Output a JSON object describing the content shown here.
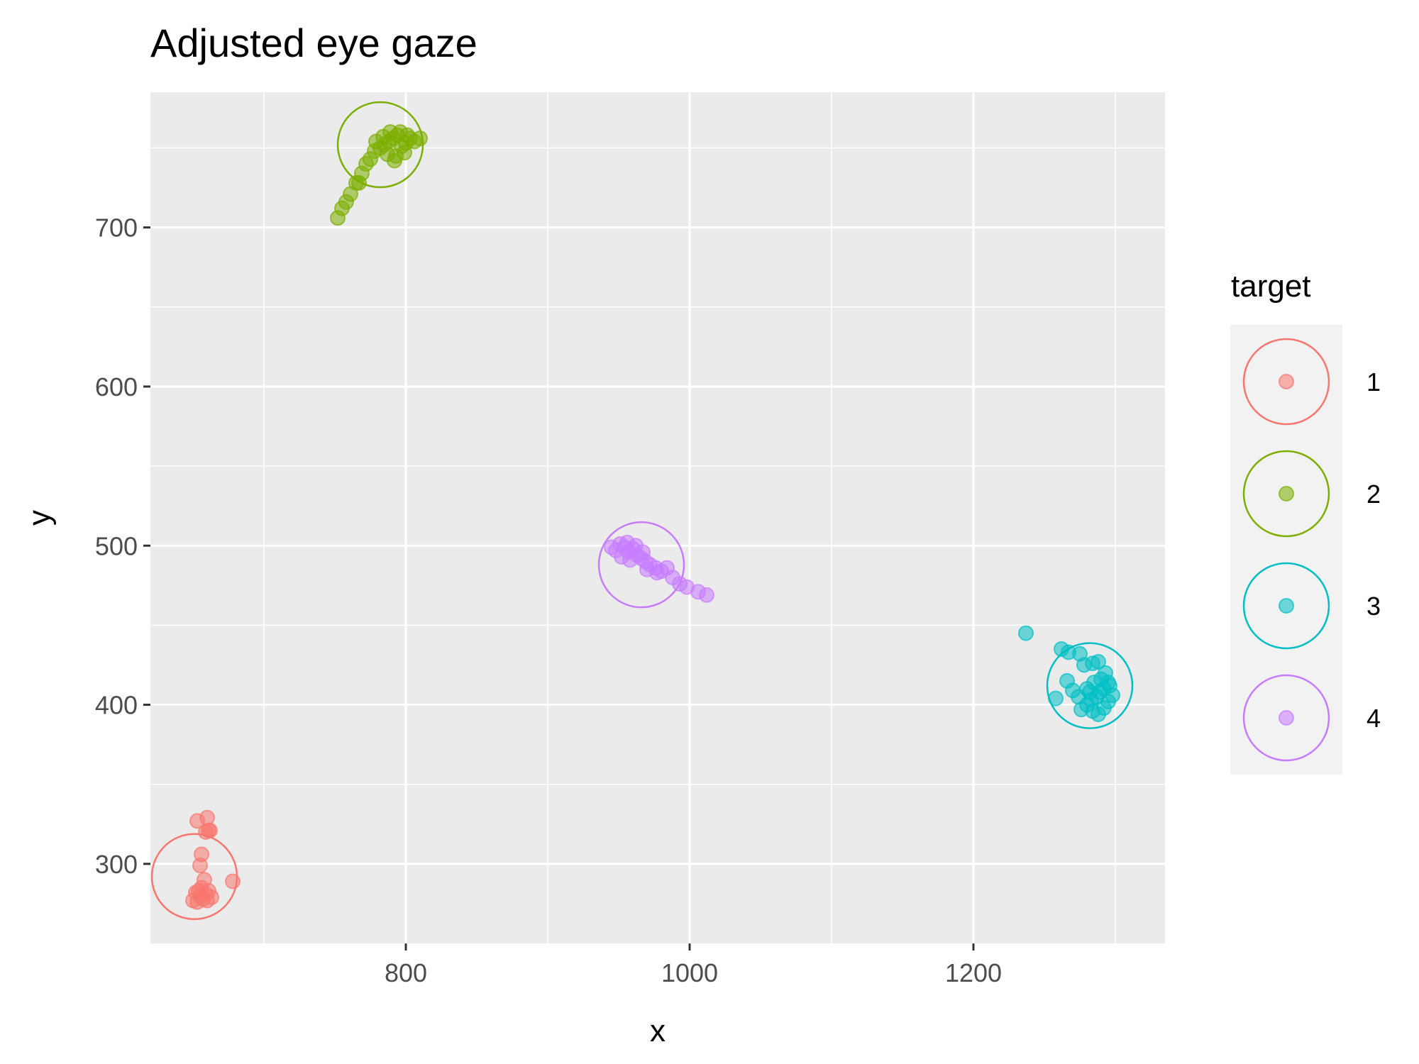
{
  "chart_data": {
    "type": "scatter",
    "title": "Adjusted eye gaze",
    "xlabel": "x",
    "ylabel": "y",
    "xlim": [
      620,
      1335
    ],
    "ylim": [
      250,
      785
    ],
    "x_ticks": [
      800,
      1000,
      1200
    ],
    "x_tick_labels": [
      "800",
      "1000",
      "1200"
    ],
    "y_ticks": [
      300,
      400,
      500,
      600,
      700
    ],
    "y_tick_labels": [
      "300",
      "400",
      "500",
      "600",
      "700"
    ],
    "x_minor_ticks": [
      700,
      900,
      1100,
      1300
    ],
    "y_minor_ticks": [
      350,
      450,
      550,
      650,
      750
    ],
    "grid": true,
    "legend": {
      "title": "target",
      "position": "right"
    },
    "series": [
      {
        "name": "1",
        "color": "#F8766D",
        "target": {
          "x": 651,
          "y": 292
        },
        "points": [
          [
            653,
            327
          ],
          [
            660,
            329
          ],
          [
            661,
            321
          ],
          [
            659,
            320
          ],
          [
            662,
            321
          ],
          [
            656,
            306
          ],
          [
            655,
            299
          ],
          [
            658,
            290
          ],
          [
            678,
            289
          ],
          [
            652,
            282
          ],
          [
            655,
            280
          ],
          [
            650,
            277
          ],
          [
            653,
            276
          ],
          [
            657,
            278
          ],
          [
            659,
            281
          ],
          [
            661,
            283
          ],
          [
            663,
            279
          ],
          [
            654,
            283
          ],
          [
            656,
            285
          ],
          [
            660,
            277
          ]
        ]
      },
      {
        "name": "2",
        "color": "#7CAE00",
        "target": {
          "x": 782,
          "y": 752
        },
        "points": [
          [
            752,
            706
          ],
          [
            755,
            712
          ],
          [
            758,
            716
          ],
          [
            761,
            721
          ],
          [
            765,
            728
          ],
          [
            769,
            734
          ],
          [
            772,
            740
          ],
          [
            767,
            728
          ],
          [
            775,
            743
          ],
          [
            778,
            748
          ],
          [
            782,
            750
          ],
          [
            785,
            752
          ],
          [
            788,
            754
          ],
          [
            791,
            756
          ],
          [
            794,
            758
          ],
          [
            797,
            751
          ],
          [
            800,
            753
          ],
          [
            803,
            756
          ],
          [
            806,
            754
          ],
          [
            810,
            756
          ],
          [
            787,
            746
          ],
          [
            793,
            745
          ],
          [
            799,
            747
          ],
          [
            779,
            754
          ],
          [
            784,
            757
          ],
          [
            789,
            760
          ],
          [
            796,
            760
          ],
          [
            801,
            758
          ],
          [
            792,
            742
          ]
        ]
      },
      {
        "name": "3",
        "color": "#00BFC4",
        "target": {
          "x": 1282,
          "y": 412
        },
        "points": [
          [
            1237,
            445
          ],
          [
            1262,
            435
          ],
          [
            1267,
            433
          ],
          [
            1275,
            432
          ],
          [
            1284,
            426
          ],
          [
            1288,
            427
          ],
          [
            1278,
            425
          ],
          [
            1266,
            415
          ],
          [
            1270,
            409
          ],
          [
            1258,
            404
          ],
          [
            1274,
            405
          ],
          [
            1280,
            400
          ],
          [
            1284,
            396
          ],
          [
            1288,
            394
          ],
          [
            1292,
            398
          ],
          [
            1295,
            402
          ],
          [
            1298,
            406
          ],
          [
            1280,
            410
          ],
          [
            1285,
            414
          ],
          [
            1290,
            416
          ],
          [
            1293,
            420
          ],
          [
            1296,
            412
          ],
          [
            1282,
            408
          ],
          [
            1287,
            405
          ],
          [
            1292,
            410
          ],
          [
            1276,
            397
          ],
          [
            1283,
            403
          ],
          [
            1289,
            408
          ],
          [
            1295,
            414
          ]
        ]
      },
      {
        "name": "4",
        "color": "#C77CFF",
        "target": {
          "x": 966,
          "y": 488
        },
        "points": [
          [
            945,
            499
          ],
          [
            948,
            497
          ],
          [
            951,
            501
          ],
          [
            954,
            499
          ],
          [
            957,
            496
          ],
          [
            960,
            498
          ],
          [
            963,
            494
          ],
          [
            966,
            492
          ],
          [
            969,
            490
          ],
          [
            952,
            493
          ],
          [
            956,
            502
          ],
          [
            962,
            500
          ],
          [
            967,
            496
          ],
          [
            972,
            488
          ],
          [
            976,
            486
          ],
          [
            980,
            484
          ],
          [
            984,
            486
          ],
          [
            988,
            480
          ],
          [
            993,
            476
          ],
          [
            998,
            474
          ],
          [
            1006,
            471
          ],
          [
            1012,
            469
          ],
          [
            970,
            485
          ],
          [
            977,
            483
          ],
          [
            958,
            491
          ]
        ]
      }
    ]
  }
}
